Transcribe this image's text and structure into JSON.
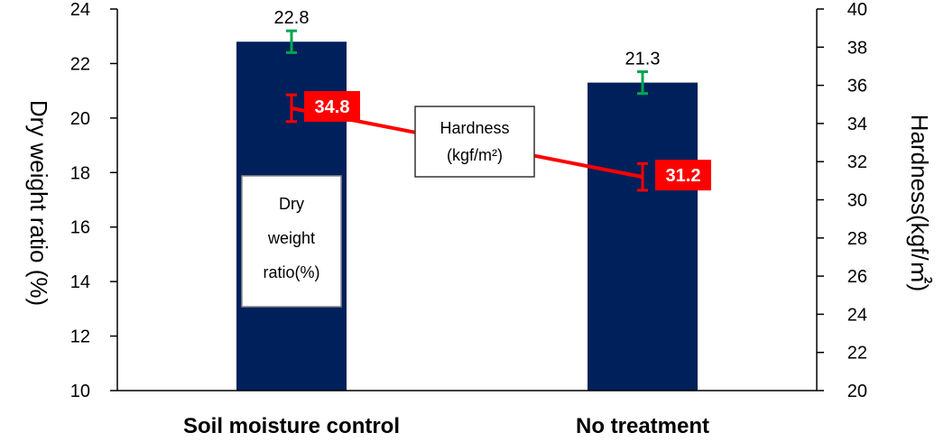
{
  "chart_data": {
    "type": "bar",
    "categories": [
      "Soil moisture control",
      "No treatment"
    ],
    "bar_series": {
      "name": "Dry weight ratio(%)",
      "values": [
        22.8,
        21.3
      ],
      "error": [
        0.4,
        0.4
      ],
      "color": "#00205b",
      "error_color": "#00a651",
      "axis": "left"
    },
    "line_series": {
      "name": "Hardness (kgf/m²)",
      "values": [
        34.8,
        31.2
      ],
      "error": [
        0.7,
        0.7
      ],
      "color": "#ff0000",
      "axis": "right"
    },
    "left_axis": {
      "label": "Dry weight ratio  (%)",
      "ylim": [
        10,
        24
      ],
      "ticks": [
        "10",
        "12",
        "14",
        "16",
        "18",
        "20",
        "22",
        "24"
      ]
    },
    "right_axis": {
      "label": "Hardness(kgf/㎡)",
      "ylim": [
        20,
        40
      ],
      "ticks": [
        "20",
        "22",
        "24",
        "26",
        "28",
        "30",
        "32",
        "34",
        "36",
        "38",
        "40"
      ]
    },
    "annotations": {
      "bar_box": [
        "Dry",
        "weight",
        "ratio(%)"
      ],
      "line_box": [
        "Hardness",
        "(kgf/m²)"
      ]
    },
    "grid": false
  }
}
